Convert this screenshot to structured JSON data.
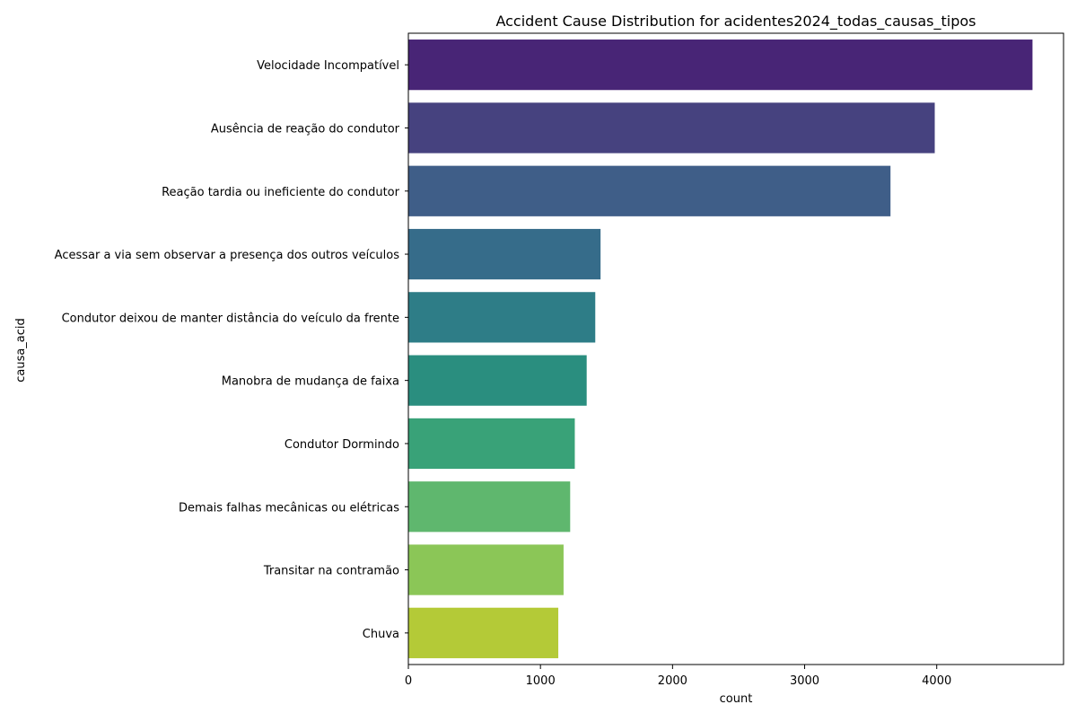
{
  "chart_data": {
    "type": "bar",
    "orientation": "horizontal",
    "title": "Accident Cause Distribution for acidentes2024_todas_causas_tipos",
    "xlabel": "count",
    "ylabel": "causa_acid",
    "xlim": [
      0,
      4960
    ],
    "xticks": [
      0,
      1000,
      2000,
      3000,
      4000
    ],
    "grid": false,
    "categories": [
      "Velocidade Incompatível",
      "Ausência de reação do condutor",
      "Reação tardia ou ineficiente do condutor",
      "Acessar a via sem observar a presença dos outros veículos",
      "Condutor deixou de manter distância do veículo da frente",
      "Manobra de mudança de faixa",
      "Condutor Dormindo",
      "Demais falhas mecânicas ou elétricas",
      "Transitar na contramão",
      "Chuva"
    ],
    "values": [
      4725,
      3985,
      3650,
      1455,
      1415,
      1350,
      1260,
      1225,
      1175,
      1135
    ],
    "colors": [
      "#482576",
      "#46427f",
      "#3f5e88",
      "#366c8a",
      "#2e7d87",
      "#2a8e7f",
      "#39a278",
      "#5fb76e",
      "#8bc657",
      "#b4ca37"
    ],
    "palette": "viridis"
  }
}
